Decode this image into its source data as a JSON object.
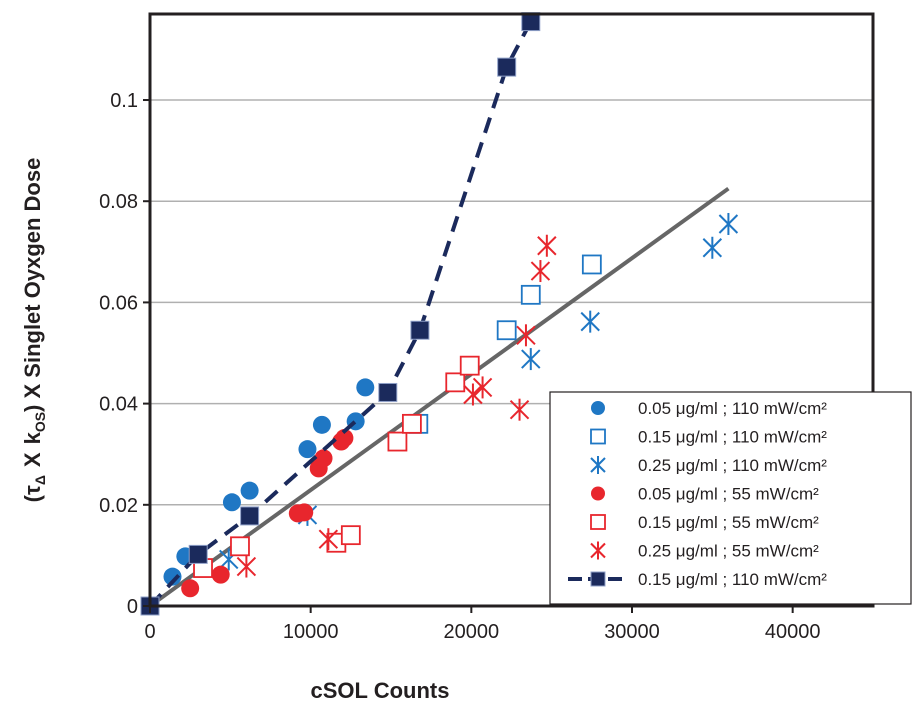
{
  "chart_data": {
    "type": "scatter",
    "title": "",
    "xlabel": "cSOL Counts",
    "ylabel": "(τΔ X kOS) X Singlet Oyxgen Dose",
    "ylabel_parts": {
      "tau": "τ",
      "tau_sub": "Δ",
      "x1": "X",
      "k": "k",
      "k_sub": "OS",
      "rest": ") X Singlet Oyxgen Dose",
      "open": "("
    },
    "xlim": [
      0,
      45000
    ],
    "ylim": [
      0,
      0.117
    ],
    "x_ticks": [
      0,
      10000,
      20000,
      30000,
      40000
    ],
    "x_tick_labels": [
      "0",
      "10000",
      "20000",
      "30000",
      "40000"
    ],
    "y_ticks": [
      0,
      0.02,
      0.04,
      0.06,
      0.08,
      0.1
    ],
    "y_tick_labels": [
      "0",
      "0.02",
      "0.04",
      "0.06",
      "0.08",
      "0.1"
    ],
    "grid": "horizontal",
    "legend_position": "bottom-right",
    "colors": {
      "blue": "#1f77c4",
      "red": "#e8262d",
      "navy": "#1b2a5c",
      "fit": "#666666",
      "grid": "#b0b0b0",
      "axis": "#231f20"
    },
    "series": [
      {
        "name": "0.05 μg/ml ; 110 mW/cm²",
        "marker": "filled-circle",
        "color": "#1f77c4",
        "points": [
          [
            0,
            0
          ],
          [
            1400,
            0.0058
          ],
          [
            2200,
            0.0098
          ],
          [
            2800,
            0.0102
          ],
          [
            5100,
            0.0205
          ],
          [
            6200,
            0.0228
          ],
          [
            9800,
            0.031
          ],
          [
            10700,
            0.0358
          ],
          [
            12800,
            0.0365
          ],
          [
            13400,
            0.0432
          ]
        ]
      },
      {
        "name": "0.15 μg/ml ; 110 mW/cm²",
        "marker": "open-square",
        "color": "#1f77c4",
        "points": [
          [
            16700,
            0.036
          ],
          [
            22200,
            0.0545
          ],
          [
            23700,
            0.0615
          ],
          [
            27500,
            0.0675
          ]
        ]
      },
      {
        "name": "0.25 μg/ml ; 110 mW/cm²",
        "marker": "asterisk",
        "color": "#1f77c4",
        "points": [
          [
            4900,
            0.0092
          ],
          [
            9800,
            0.018
          ],
          [
            23700,
            0.0488
          ],
          [
            27400,
            0.0562
          ],
          [
            35000,
            0.0708
          ],
          [
            36000,
            0.0755
          ]
        ]
      },
      {
        "name": "0.05 μg/ml ; 55 mW/cm²",
        "marker": "filled-circle",
        "color": "#e8262d",
        "points": [
          [
            0,
            0
          ],
          [
            2500,
            0.0035
          ],
          [
            4400,
            0.0062
          ],
          [
            9200,
            0.0183
          ],
          [
            9600,
            0.0185
          ],
          [
            10500,
            0.0272
          ],
          [
            10800,
            0.0292
          ],
          [
            11900,
            0.0325
          ],
          [
            12100,
            0.0332
          ]
        ]
      },
      {
        "name": "0.15 μg/ml ; 55 mW/cm²",
        "marker": "open-square",
        "color": "#e8262d",
        "points": [
          [
            3300,
            0.0075
          ],
          [
            5600,
            0.0118
          ],
          [
            11600,
            0.0125
          ],
          [
            12500,
            0.014
          ],
          [
            15400,
            0.0325
          ],
          [
            16300,
            0.036
          ],
          [
            19000,
            0.0442
          ],
          [
            19900,
            0.0475
          ]
        ]
      },
      {
        "name": "0.25 μg/ml ; 55 mW/cm²",
        "marker": "asterisk",
        "color": "#e8262d",
        "points": [
          [
            6000,
            0.0078
          ],
          [
            11100,
            0.0132
          ],
          [
            20100,
            0.0418
          ],
          [
            20700,
            0.0432
          ],
          [
            23000,
            0.0388
          ],
          [
            23400,
            0.0535
          ],
          [
            24300,
            0.0662
          ],
          [
            24700,
            0.0712
          ]
        ]
      },
      {
        "name": "0.15 μg/ml ; 110 mW/cm²",
        "marker": "filled-square-dashed-line",
        "color": "#1b2a5c",
        "points": [
          [
            0,
            0
          ],
          [
            3000,
            0.0102
          ],
          [
            6200,
            0.0178
          ],
          [
            14800,
            0.0422
          ],
          [
            16800,
            0.0545
          ],
          [
            22200,
            0.1065
          ],
          [
            23700,
            0.1155
          ]
        ]
      }
    ],
    "fit_line": {
      "points": [
        [
          0,
          0
        ],
        [
          36000,
          0.0825
        ]
      ],
      "color": "#666666"
    },
    "legend": [
      "0.05 μg/ml ; 110 mW/cm²",
      "0.15 μg/ml ; 110 mW/cm²",
      "0.25 μg/ml ; 110 mW/cm²",
      "0.05 μg/ml ; 55 mW/cm²",
      "0.15 μg/ml ; 55 mW/cm²",
      "0.25 μg/ml ; 55 mW/cm²",
      "0.15 μg/ml ; 110 mW/cm²"
    ]
  }
}
